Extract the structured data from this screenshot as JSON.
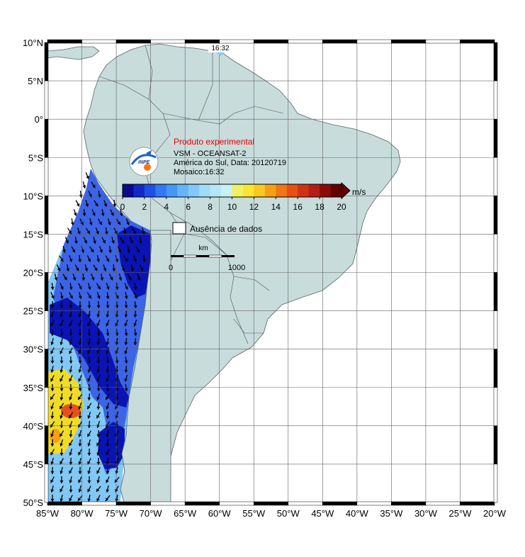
{
  "map": {
    "lon_min": -85,
    "lon_max": -20,
    "lat_min": -50,
    "lat_max": 10,
    "x_ticks": [
      {
        "lon": -85,
        "label": "85°W"
      },
      {
        "lon": -80,
        "label": "80°W"
      },
      {
        "lon": -75,
        "label": "75°W"
      },
      {
        "lon": -70,
        "label": "70°W"
      },
      {
        "lon": -65,
        "label": "65°W"
      },
      {
        "lon": -60,
        "label": "60°W"
      },
      {
        "lon": -55,
        "label": "55°W"
      },
      {
        "lon": -50,
        "label": "50°W"
      },
      {
        "lon": -45,
        "label": "45°W"
      },
      {
        "lon": -40,
        "label": "40°W"
      },
      {
        "lon": -35,
        "label": "35°W"
      },
      {
        "lon": -30,
        "label": "30°W"
      },
      {
        "lon": -25,
        "label": "25°W"
      },
      {
        "lon": -20,
        "label": "20°W"
      }
    ],
    "y_ticks": [
      {
        "lat": 10,
        "label": "10°N"
      },
      {
        "lat": 5,
        "label": "5°N"
      },
      {
        "lat": 0,
        "label": "0°"
      },
      {
        "lat": -5,
        "label": "5°S"
      },
      {
        "lat": -10,
        "label": "10°S"
      },
      {
        "lat": -15,
        "label": "15°S"
      },
      {
        "lat": -20,
        "label": "20°S"
      },
      {
        "lat": -25,
        "label": "25°S"
      },
      {
        "lat": -30,
        "label": "30°S"
      },
      {
        "lat": -35,
        "label": "35°S"
      },
      {
        "lat": -40,
        "label": "40°S"
      },
      {
        "lat": -45,
        "label": "45°S"
      },
      {
        "lat": -50,
        "label": "50°S"
      }
    ]
  },
  "swath_time_label": "16:32",
  "info": {
    "title": "Produto experimental",
    "line1": "VSM - OCEANSAT-2",
    "line2": "América do Sul, Data: 20120719",
    "line3": "Mosaico:16:32"
  },
  "logo": {
    "text": "INPE"
  },
  "colorbar": {
    "unit": "m/s",
    "tick_labels": [
      "0",
      "2",
      "4",
      "6",
      "8",
      "10",
      "12",
      "14",
      "16",
      "18",
      "20"
    ],
    "colors": [
      "#0a0a8c",
      "#1428c8",
      "#1e50e6",
      "#3278f0",
      "#4696f5",
      "#64b4fa",
      "#82c8fa",
      "#a0dcfa",
      "#b4e6f5",
      "#c8f0f5",
      "#f0f064",
      "#fae632",
      "#fac81e",
      "#f5a014",
      "#f07814",
      "#e65014",
      "#d23214",
      "#b41e14",
      "#8c0a0a",
      "#640000"
    ]
  },
  "legend": {
    "no_data_label": "Ausência de dados"
  },
  "scale_bar": {
    "unit_label": "km",
    "start_label": "0",
    "end_label": "1000"
  },
  "colors": {
    "land": "#c8dcdc",
    "ocean": "#ffffff",
    "wind_dark": "#0a14b4",
    "wind_mid": "#3c64e6",
    "wind_light": "#82c8f5",
    "wind_high": "#f0dc28",
    "wind_max": "#e6501e",
    "title_red": "#e60000"
  }
}
